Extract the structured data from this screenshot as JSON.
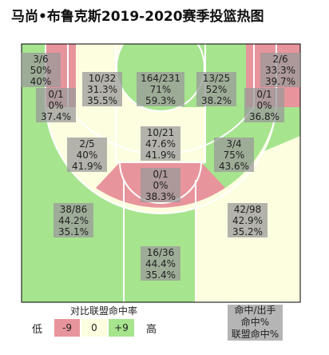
{
  "title": "马尚•布鲁克斯2019-2020赛季投篮热图",
  "colors": {
    "below": "#e8949c",
    "average": "#fdfee0",
    "above": "#a6e48e",
    "label_box": "#9a9a9a",
    "lines": "#ffffff",
    "border": "#000000"
  },
  "chart_data": {
    "type": "heatmap",
    "title": "马尚•布鲁克斯2019-2020赛季投篮热图",
    "zones": [
      {
        "id": "left-corner-3",
        "made_attempts": "3/6",
        "fg_pct": "50%",
        "league_pct": "40%",
        "rating": "above"
      },
      {
        "id": "right-corner-3",
        "made_attempts": "2/6",
        "fg_pct": "33.3%",
        "league_pct": "39.7%",
        "rating": "below"
      },
      {
        "id": "left-baseline-mid",
        "made_attempts": "0/1",
        "fg_pct": "0%",
        "league_pct": "37.4%",
        "rating": "below"
      },
      {
        "id": "right-baseline-mid",
        "made_attempts": "0/1",
        "fg_pct": "0%",
        "league_pct": "36.8%",
        "rating": "below"
      },
      {
        "id": "left-wing-mid",
        "made_attempts": "10/32",
        "fg_pct": "31.3%",
        "league_pct": "35.5%",
        "rating": "average"
      },
      {
        "id": "right-wing-mid",
        "made_attempts": "13/25",
        "fg_pct": "52%",
        "league_pct": "38.2%",
        "rating": "above"
      },
      {
        "id": "restricted-area",
        "made_attempts": "164/231",
        "fg_pct": "71%",
        "league_pct": "59.3%",
        "rating": "above"
      },
      {
        "id": "paint-non-ra",
        "made_attempts": "10/21",
        "fg_pct": "47.6%",
        "league_pct": "41.9%",
        "rating": "average"
      },
      {
        "id": "left-elbow-mid",
        "made_attempts": "2/5",
        "fg_pct": "40%",
        "league_pct": "41.9%",
        "rating": "average"
      },
      {
        "id": "right-elbow-mid",
        "made_attempts": "3/4",
        "fg_pct": "75%",
        "league_pct": "43.6%",
        "rating": "above"
      },
      {
        "id": "top-key-mid",
        "made_attempts": "0/1",
        "fg_pct": "0%",
        "league_pct": "38.3%",
        "rating": "below"
      },
      {
        "id": "left-wing-3",
        "made_attempts": "38/86",
        "fg_pct": "44.2%",
        "league_pct": "35.1%",
        "rating": "above"
      },
      {
        "id": "right-wing-3",
        "made_attempts": "42/98",
        "fg_pct": "42.9%",
        "league_pct": "35.2%",
        "rating": "average"
      },
      {
        "id": "top-key-3",
        "made_attempts": "16/36",
        "fg_pct": "44.4%",
        "league_pct": "35.4%",
        "rating": "above"
      }
    ]
  },
  "legend": {
    "title": "对比联盟命中率",
    "low_label": "低",
    "high_label": "高",
    "below_label": "-9",
    "average_label": "0",
    "above_label": "+9"
  },
  "key": {
    "line1": "命中/出手",
    "line2": "命中%",
    "line3": "联盟命中%"
  }
}
